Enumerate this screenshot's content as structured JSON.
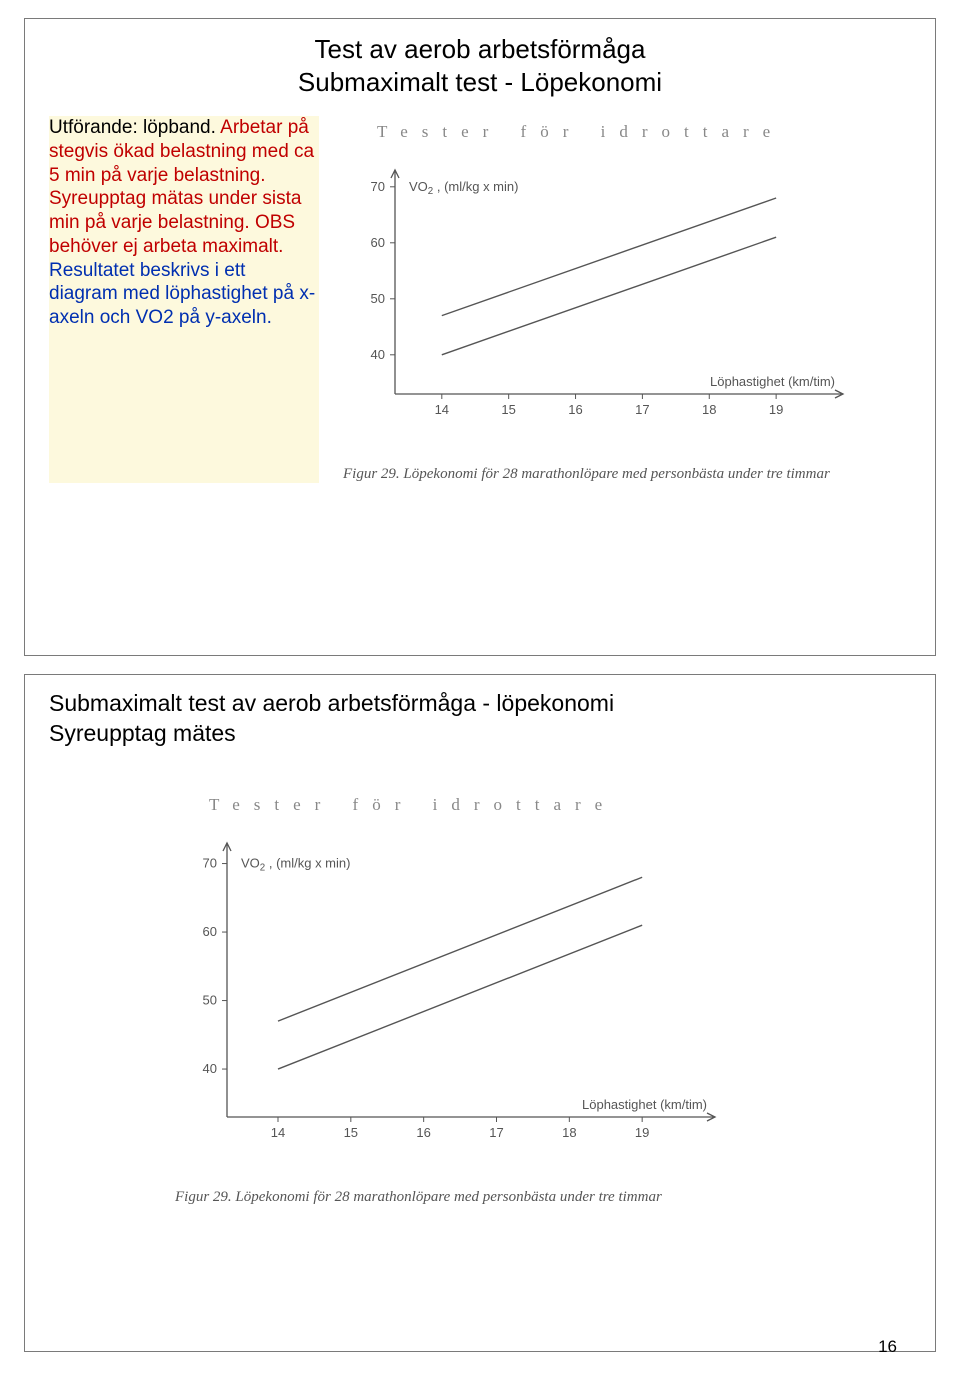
{
  "panel1": {
    "title_line1": "Test av aerob arbetsförmåga",
    "title_line2": "Submaximalt test - Löpekonomi",
    "para_black": "Utförande: löpband.",
    "para_red": "Arbetar på stegvis ökad belastning med ca 5 min på varje belastning. Syreupptag mätas under sista min på varje belastning. OBS behöver ej arbeta maximalt.",
    "para_blue": "Resultatet beskrivs i ett diagram med löphastighet på x-axeln och VO2 på y-axeln.",
    "chart_header": "Tester för idrottare",
    "caption": "Figur 29. Löpekonomi för 28 marathonlöpare med personbästa under tre timmar"
  },
  "panel2": {
    "title_line1": "Submaximalt test av aerob arbetsförmåga - löpekonomi",
    "title_line2": "Syreupptag mätes",
    "chart_header": "Tester för idrottare",
    "caption": "Figur 29. Löpekonomi för 28 marathonlöpare med personbästa under tre timmar"
  },
  "chart": {
    "type": "line",
    "y_label": "VO₂ , (ml/kg x min)",
    "x_label": "Löphastighet (km/tim)",
    "x_ticks": [
      14,
      15,
      16,
      17,
      18,
      19
    ],
    "y_ticks": [
      40,
      50,
      60,
      70
    ],
    "xlim": [
      13.3,
      20
    ],
    "ylim": [
      33,
      73
    ],
    "series": [
      {
        "points": [
          [
            14,
            47
          ],
          [
            19,
            68
          ]
        ]
      },
      {
        "points": [
          [
            14,
            40
          ],
          [
            19,
            61
          ]
        ]
      }
    ],
    "line_color": "#555555",
    "axis_color": "#555555",
    "text_color": "#555555",
    "background": "#ffffff",
    "line_width": 1.4,
    "label_fontsize": 13,
    "tick_fontsize": 13
  },
  "page_number": "16"
}
